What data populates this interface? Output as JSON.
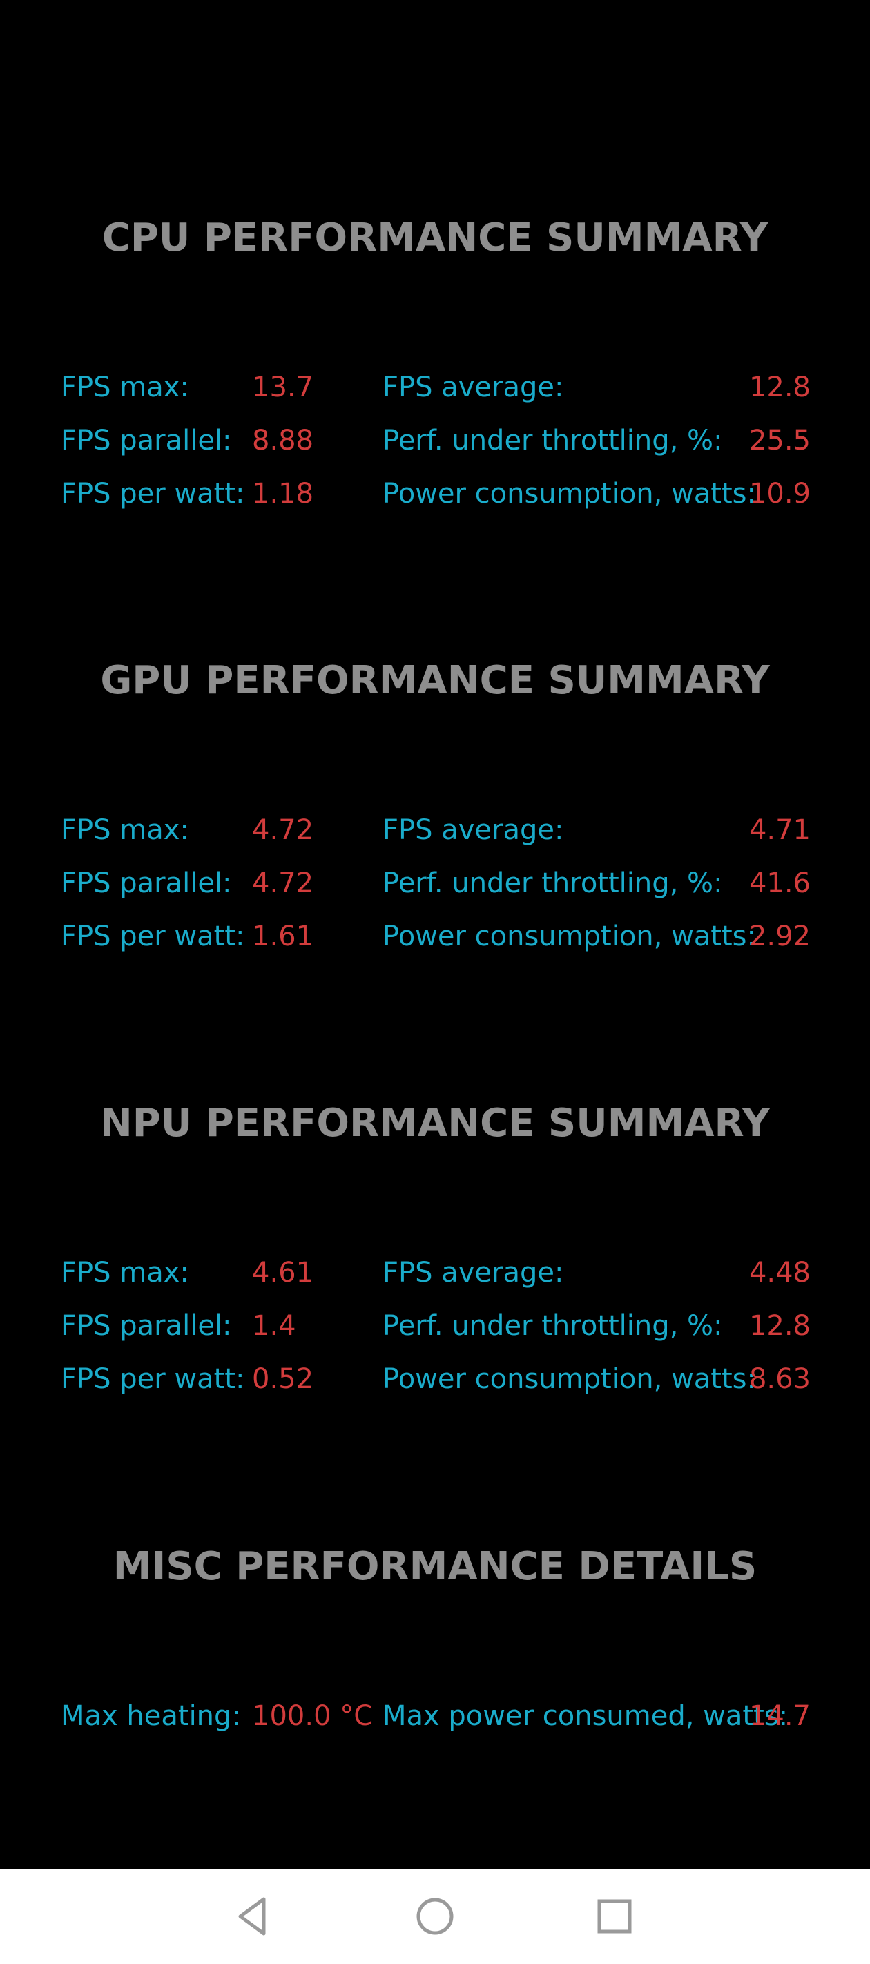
{
  "sections": [
    {
      "title": "CPU PERFORMANCE SUMMARY",
      "rows": [
        {
          "label1": "FPS max:",
          "value1": "13.7",
          "label2": "FPS average:",
          "value2": "12.8"
        },
        {
          "label1": "FPS parallel:",
          "value1": "8.88",
          "label2": "Perf. under throttling, %:",
          "value2": "25.5"
        },
        {
          "label1": "FPS per watt:",
          "value1": "1.18",
          "label2": "Power consumption, watts:",
          "value2": "10.9"
        }
      ]
    },
    {
      "title": "GPU PERFORMANCE SUMMARY",
      "rows": [
        {
          "label1": "FPS max:",
          "value1": "4.72",
          "label2": "FPS average:",
          "value2": "4.71"
        },
        {
          "label1": "FPS parallel:",
          "value1": "4.72",
          "label2": "Perf. under throttling, %:",
          "value2": "41.6"
        },
        {
          "label1": "FPS per watt:",
          "value1": "1.61",
          "label2": "Power consumption, watts:",
          "value2": "2.92"
        }
      ]
    },
    {
      "title": "NPU PERFORMANCE SUMMARY",
      "rows": [
        {
          "label1": "FPS max:",
          "value1": "4.61",
          "label2": "FPS average:",
          "value2": "4.48"
        },
        {
          "label1": "FPS parallel:",
          "value1": "1.4",
          "label2": "Perf. under throttling, %:",
          "value2": "12.8"
        },
        {
          "label1": "FPS per watt:",
          "value1": "0.52",
          "label2": "Power consumption, watts:",
          "value2": "8.63"
        }
      ]
    },
    {
      "title": "MISC PERFORMANCE DETAILS",
      "rows": [
        {
          "label1": "Max heating:",
          "value1": "100.0 °C",
          "label2": "Max power consumed, watts:",
          "value2": "14.7"
        }
      ]
    }
  ],
  "navbar": {
    "back_icon": "triangle-back-icon",
    "home_icon": "circle-home-icon",
    "recent_icon": "square-recent-apps-icon"
  },
  "colors": {
    "background": "#000000",
    "title": "#8e8e8e",
    "label": "#1aaccb",
    "value": "#d23c3c",
    "navbar": "#ffffff",
    "nav_icon": "#9a9a9a"
  }
}
